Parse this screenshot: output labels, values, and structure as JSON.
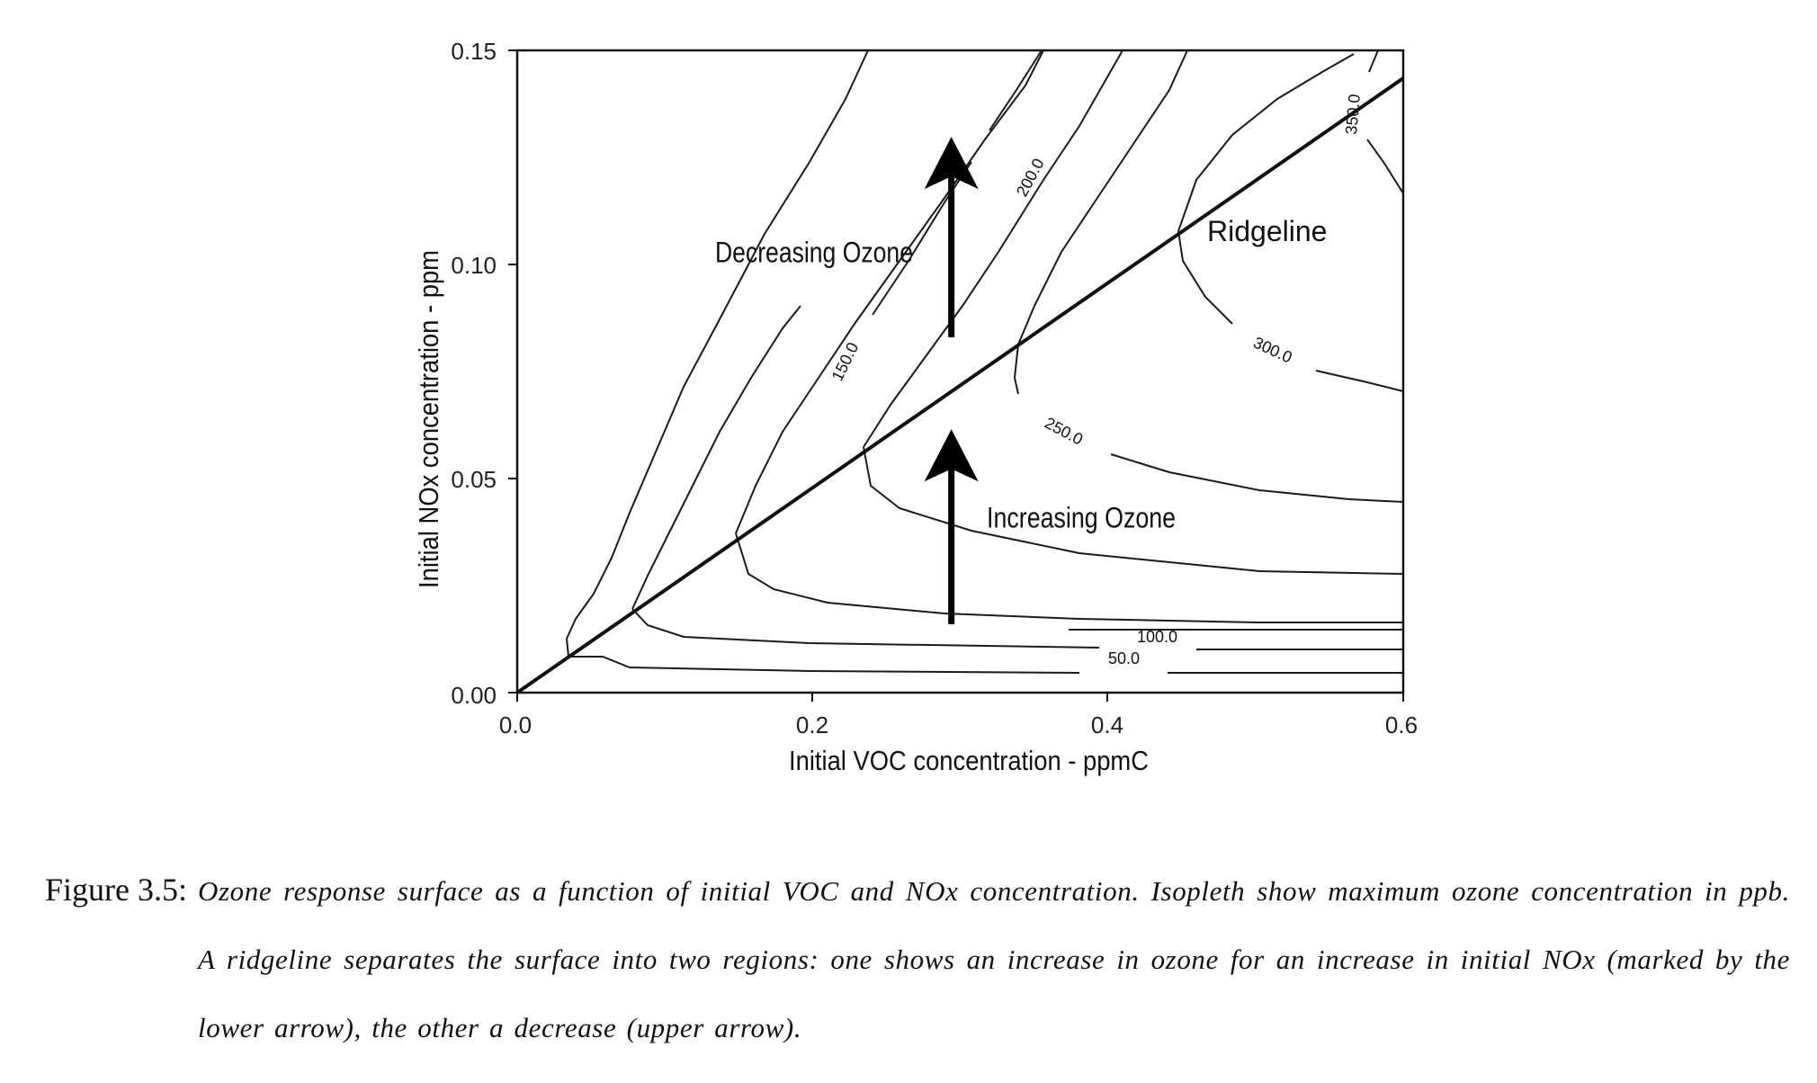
{
  "chart_data": {
    "type": "contour",
    "xlabel": "Initial VOC concentration - ppmC",
    "ylabel": "Initial NOx concentration - ppm",
    "xlim": [
      0.0,
      0.6
    ],
    "ylim": [
      0.0,
      0.15
    ],
    "x_ticks": [
      "0.0",
      "0.2",
      "0.4",
      "0.6"
    ],
    "y_ticks": [
      "0.00",
      "0.05",
      "0.10",
      "0.15"
    ],
    "grid": false,
    "contour_levels": [
      "50.0",
      "100.0",
      "150.0",
      "200.0",
      "250.0",
      "300.0",
      "350.0"
    ],
    "ridgeline": {
      "label": "Ridgeline",
      "points": [
        [
          0.0,
          0.0
        ],
        [
          0.6,
          0.1435
        ]
      ]
    },
    "annotations": [
      {
        "text": "Decreasing Ozone",
        "x": 0.134,
        "y": 0.1005
      },
      {
        "text": "Increasing Ozone",
        "x": 0.318,
        "y": 0.0385
      }
    ],
    "arrows": [
      {
        "name": "upper",
        "x": 0.294,
        "y_from": 0.083,
        "y_to": 0.1298
      },
      {
        "name": "lower",
        "x": 0.294,
        "y_from": 0.016,
        "y_to": 0.0615
      }
    ]
  },
  "caption": {
    "label": "Figure 3.5:",
    "text": "Ozone response surface as a function of initial VOC and NOx concentration. Isopleth show maximum ozone concentration in ppb. A ridgeline separates the surface into two regions: one shows an increase in ozone for an increase in initial NOx (marked by the lower arrow), the other a decrease (upper arrow)."
  }
}
